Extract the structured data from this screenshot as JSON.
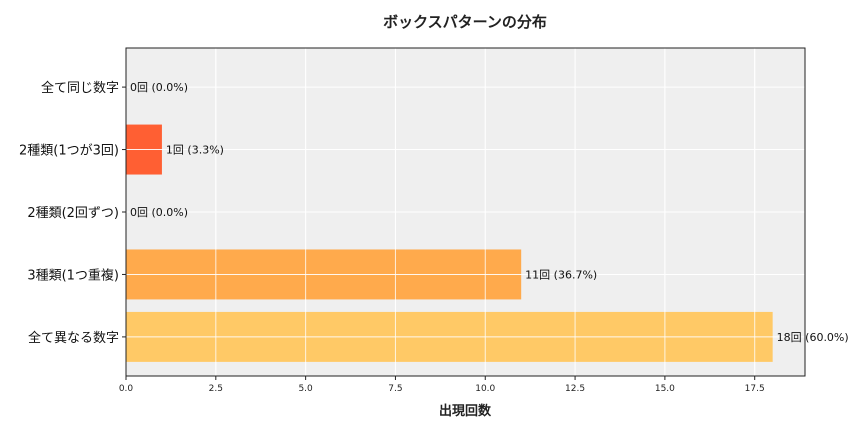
{
  "chart_data": {
    "type": "bar",
    "orientation": "horizontal",
    "title": "ボックスパターンの分布",
    "xlabel": "出現回数",
    "ylabel": "",
    "xlim": [
      0,
      18.9
    ],
    "xticks": [
      "0.0",
      "2.5",
      "5.0",
      "7.5",
      "10.0",
      "12.5",
      "15.0",
      "17.5"
    ],
    "xtick_values": [
      0,
      2.5,
      5,
      7.5,
      10,
      12.5,
      15,
      17.5
    ],
    "categories": [
      "全て同じ数字",
      "2種類(1つが3回)",
      "2種類(2回ずつ)",
      "3種類(1つ重複)",
      "全て異なる数字"
    ],
    "values": [
      0,
      1,
      0,
      11,
      18
    ],
    "data_labels": [
      "0回 (0.0%)",
      "1回 (3.3%)",
      "0回 (0.0%)",
      "11回 (36.7%)",
      "18回 (60.0%)"
    ],
    "colors": [
      "#FF3B2F",
      "#FF5F33",
      "#FF8A3D",
      "#FFAA4C",
      "#FFC966"
    ],
    "grid": true,
    "background": "#EFEFEF"
  }
}
